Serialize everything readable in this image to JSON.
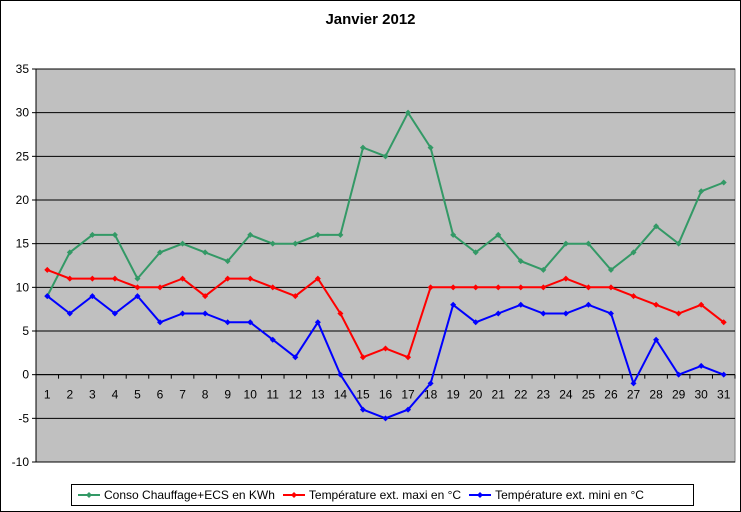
{
  "chart_data": {
    "type": "line",
    "title": "Janvier 2012",
    "xlabel": "",
    "ylabel": "",
    "ylim": [
      -10,
      35
    ],
    "yticks": [
      -10,
      -5,
      0,
      5,
      10,
      15,
      20,
      25,
      30,
      35
    ],
    "grid": true,
    "legend_position": "bottom",
    "plot_background": "#c0c0c0",
    "x": [
      1,
      2,
      3,
      4,
      5,
      6,
      7,
      8,
      9,
      10,
      11,
      12,
      13,
      14,
      15,
      16,
      17,
      18,
      19,
      20,
      21,
      22,
      23,
      24,
      25,
      26,
      27,
      28,
      29,
      30,
      31
    ],
    "series": [
      {
        "name": "Conso Chauffage+ECS en KWh",
        "color": "#339966",
        "values": [
          9,
          14,
          16,
          16,
          11,
          14,
          15,
          14,
          13,
          16,
          15,
          15,
          16,
          16,
          26,
          25,
          30,
          26,
          16,
          14,
          16,
          13,
          12,
          15,
          15,
          12,
          14,
          17,
          15,
          21,
          22
        ]
      },
      {
        "name": "Température ext. maxi en °C",
        "color": "#ff0000",
        "values": [
          12,
          11,
          11,
          11,
          10,
          10,
          11,
          9,
          11,
          11,
          10,
          9,
          11,
          7,
          2,
          3,
          2,
          10,
          10,
          10,
          10,
          10,
          10,
          11,
          10,
          10,
          9,
          8,
          7,
          8,
          6
        ]
      },
      {
        "name": "Température ext. mini en °C",
        "color": "#0000ff",
        "values": [
          9,
          7,
          9,
          7,
          9,
          6,
          7,
          7,
          6,
          6,
          4,
          2,
          6,
          0,
          -4,
          -5,
          -4,
          -1,
          8,
          6,
          7,
          8,
          7,
          7,
          8,
          7,
          -1,
          4,
          0,
          1,
          0
        ]
      }
    ]
  }
}
